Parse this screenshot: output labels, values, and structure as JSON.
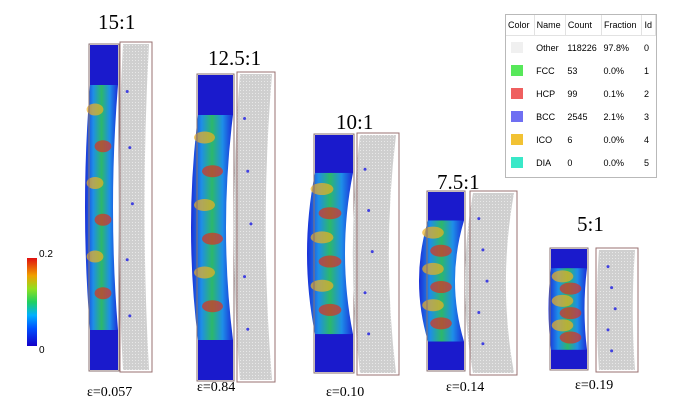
{
  "colorbar": {
    "max_label": "0.2",
    "min_label": "0"
  },
  "specimens": [
    {
      "ratio": "15:1",
      "strain": "ε=0.057"
    },
    {
      "ratio": "12.5:1",
      "strain": "ε=0.84"
    },
    {
      "ratio": "10:1",
      "strain": "ε=0.10"
    },
    {
      "ratio": "7.5:1",
      "strain": "ε=0.14"
    },
    {
      "ratio": "5:1",
      "strain": "ε=0.19"
    }
  ],
  "legend": {
    "headers": {
      "color": "Color",
      "name": "Name",
      "count": "Count",
      "fraction": "Fraction",
      "id": "Id"
    },
    "rows": [
      {
        "color": "#f0f0f0",
        "name": "Other",
        "count": "118226",
        "fraction": "97.8%",
        "id": "0"
      },
      {
        "color": "#57e85a",
        "name": "FCC",
        "count": "53",
        "fraction": "0.0%",
        "id": "1"
      },
      {
        "color": "#ef5f5f",
        "name": "HCP",
        "count": "99",
        "fraction": "0.1%",
        "id": "2"
      },
      {
        "color": "#6f6ff2",
        "name": "BCC",
        "count": "2545",
        "fraction": "2.1%",
        "id": "3"
      },
      {
        "color": "#f2c233",
        "name": "ICO",
        "count": "6",
        "fraction": "0.0%",
        "id": "4"
      },
      {
        "color": "#39e8c8",
        "name": "DIA",
        "count": "0",
        "fraction": "0.0%",
        "id": "5"
      }
    ]
  }
}
